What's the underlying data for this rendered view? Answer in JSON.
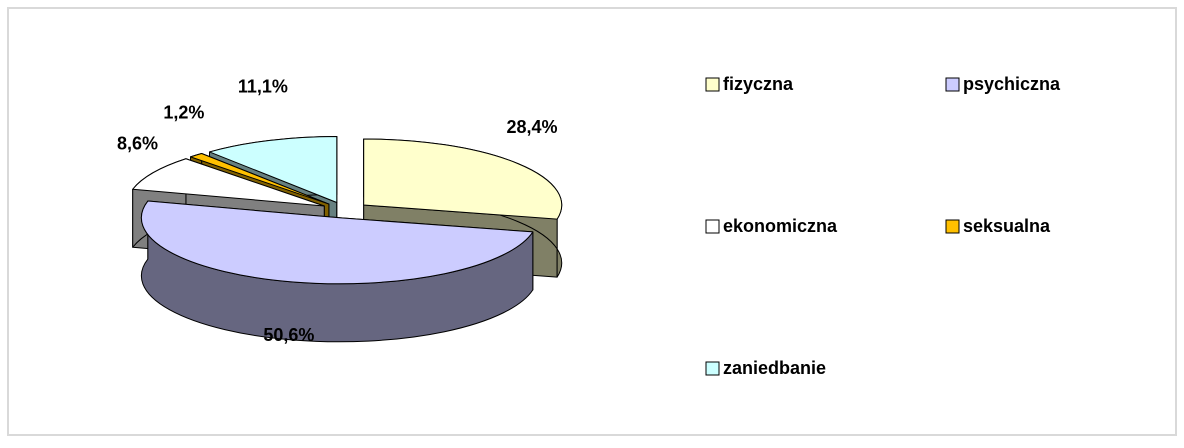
{
  "chart_data": {
    "type": "pie3d",
    "categories": [
      "fizyczna",
      "psychiczna",
      "ekonomiczna",
      "seksualna",
      "zaniedbanie"
    ],
    "values": [
      28.4,
      50.6,
      8.6,
      1.2,
      11.1
    ],
    "value_labels": [
      "28,4%",
      "50,6%",
      "8,6%",
      "1,2%",
      "11,1%"
    ],
    "colors": [
      "#ffffcc",
      "#ccccff",
      "#ffffff",
      "#ffc000",
      "#ccffff"
    ],
    "legend": "right"
  }
}
